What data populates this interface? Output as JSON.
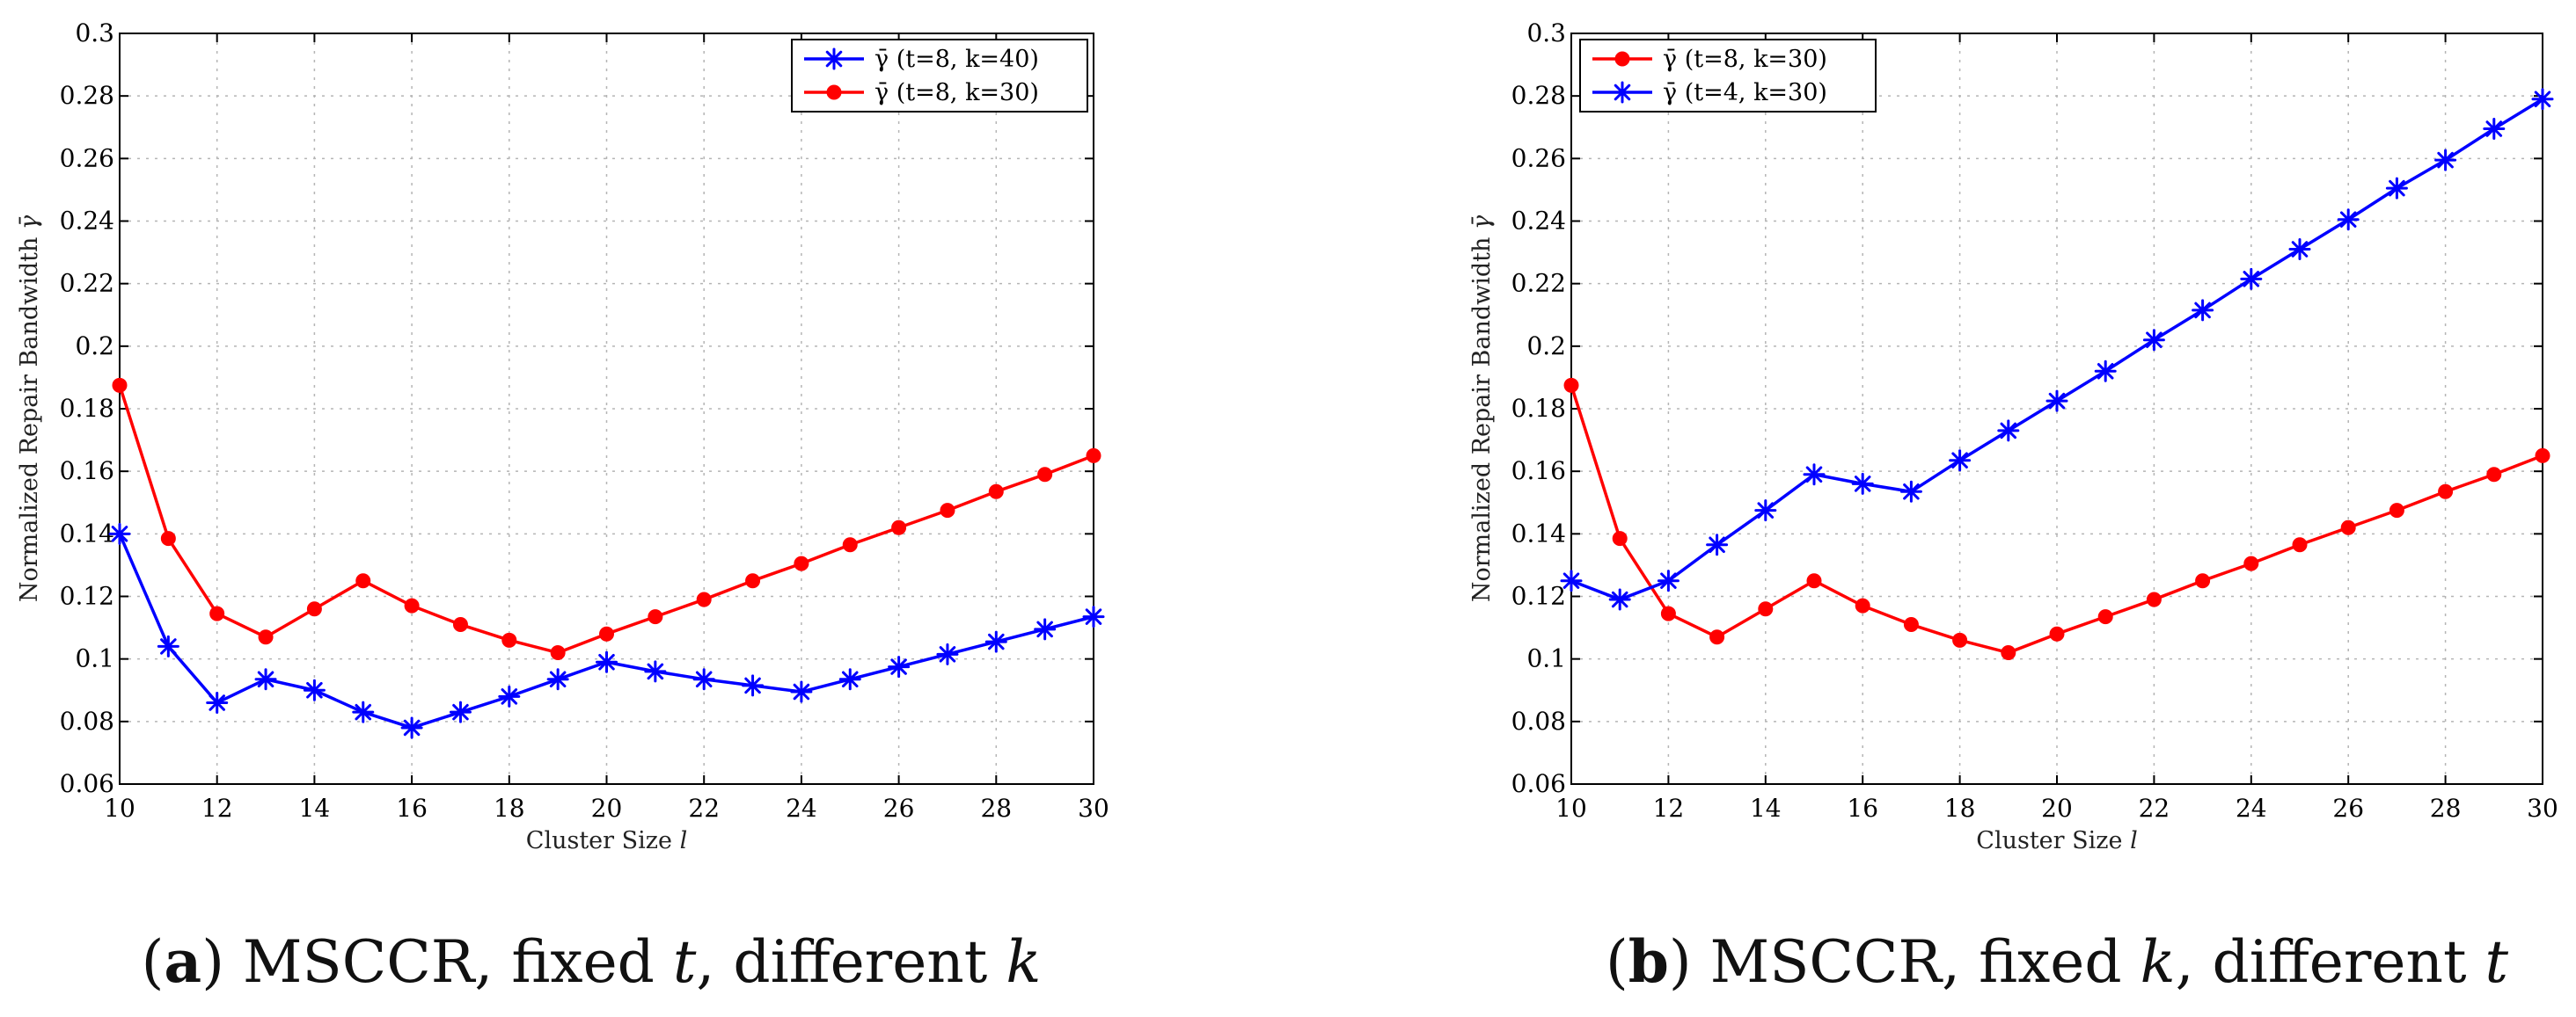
{
  "chart_data": [
    {
      "id": "a",
      "type": "line",
      "xlabel": "Cluster Size",
      "xlabel_var": "l",
      "ylabel": "Normalized Repair Bandwidth",
      "ylabel_var": "γ̄",
      "xlim": [
        10,
        30
      ],
      "ylim": [
        0.06,
        0.3
      ],
      "xticks": [
        10,
        12,
        14,
        16,
        18,
        20,
        22,
        24,
        26,
        28,
        30
      ],
      "yticks": [
        0.06,
        0.08,
        0.1,
        0.12,
        0.14,
        0.16,
        0.18,
        0.2,
        0.22,
        0.24,
        0.26,
        0.28,
        0.3
      ],
      "ytick_labels": [
        "0.06",
        "0.08",
        "0.1",
        "0.12",
        "0.14",
        "0.16",
        "0.18",
        "0.2",
        "0.22",
        "0.24",
        "0.26",
        "0.28",
        "0.3"
      ],
      "grid": true,
      "legend_position": "top-right",
      "x": [
        10,
        11,
        12,
        13,
        14,
        15,
        16,
        17,
        18,
        19,
        20,
        21,
        22,
        23,
        24,
        25,
        26,
        27,
        28,
        29,
        30
      ],
      "series": [
        {
          "name": "γ̄ (t=8, k=40)",
          "color": "#0000ff",
          "marker": "asterisk",
          "values": [
            0.14,
            0.104,
            0.086,
            0.0935,
            0.09,
            0.083,
            0.078,
            0.083,
            0.088,
            0.0935,
            0.099,
            0.096,
            0.0935,
            0.0915,
            0.0895,
            0.0935,
            0.0975,
            0.1015,
            0.1055,
            0.1095,
            0.1135
          ]
        },
        {
          "name": "γ̄ (t=8, k=30)",
          "color": "#ff0000",
          "marker": "dot",
          "values": [
            0.1875,
            0.1385,
            0.1145,
            0.107,
            0.116,
            0.125,
            0.117,
            0.111,
            0.106,
            0.102,
            0.108,
            0.1135,
            0.119,
            0.125,
            0.1305,
            0.1365,
            0.142,
            0.1475,
            0.1535,
            0.159,
            0.165
          ]
        }
      ],
      "caption": {
        "letter": "a",
        "text": ") MSCCR, fixed ",
        "var1": "t",
        "mid": ", different ",
        "var2": "k"
      }
    },
    {
      "id": "b",
      "type": "line",
      "xlabel": "Cluster Size",
      "xlabel_var": "l",
      "ylabel": "Normalized Repair Bandwidth",
      "ylabel_var": "γ̄",
      "xlim": [
        10,
        30
      ],
      "ylim": [
        0.06,
        0.3
      ],
      "xticks": [
        10,
        12,
        14,
        16,
        18,
        20,
        22,
        24,
        26,
        28,
        30
      ],
      "yticks": [
        0.06,
        0.08,
        0.1,
        0.12,
        0.14,
        0.16,
        0.18,
        0.2,
        0.22,
        0.24,
        0.26,
        0.28,
        0.3
      ],
      "ytick_labels": [
        "0.06",
        "0.08",
        "0.1",
        "0.12",
        "0.14",
        "0.16",
        "0.18",
        "0.2",
        "0.22",
        "0.24",
        "0.26",
        "0.28",
        "0.3"
      ],
      "grid": true,
      "legend_position": "top-left",
      "x": [
        10,
        11,
        12,
        13,
        14,
        15,
        16,
        17,
        18,
        19,
        20,
        21,
        22,
        23,
        24,
        25,
        26,
        27,
        28,
        29,
        30
      ],
      "series": [
        {
          "name": "γ̄ (t=8, k=30)",
          "color": "#ff0000",
          "marker": "dot",
          "values": [
            0.1875,
            0.1385,
            0.1145,
            0.107,
            0.116,
            0.125,
            0.117,
            0.111,
            0.106,
            0.102,
            0.108,
            0.1135,
            0.119,
            0.125,
            0.1305,
            0.1365,
            0.142,
            0.1475,
            0.1535,
            0.159,
            0.165
          ]
        },
        {
          "name": "γ̄ (t=4, k=30)",
          "color": "#0000ff",
          "marker": "asterisk",
          "values": [
            0.125,
            0.119,
            0.125,
            0.1365,
            0.1475,
            0.159,
            0.156,
            0.1535,
            0.1635,
            0.173,
            0.1825,
            0.192,
            0.202,
            0.2115,
            0.2215,
            0.231,
            0.2405,
            0.2505,
            0.2595,
            0.2695,
            0.279
          ]
        }
      ],
      "caption": {
        "letter": "b",
        "text": ") MSCCR, fixed ",
        "var1": "k",
        "mid": ", different ",
        "var2": "t"
      }
    }
  ]
}
